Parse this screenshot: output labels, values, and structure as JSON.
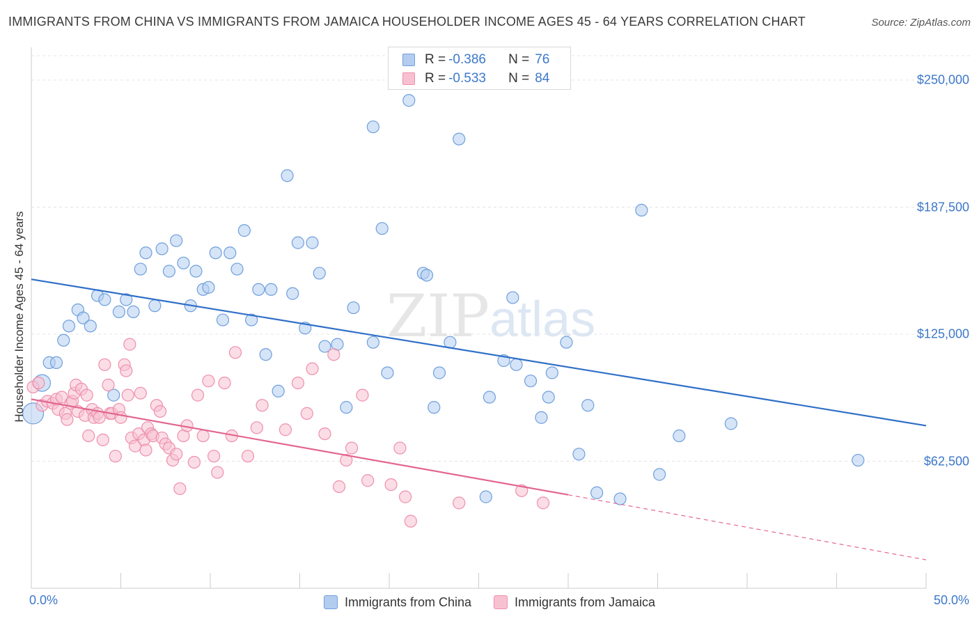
{
  "header": {
    "title": "IMMIGRANTS FROM CHINA VS IMMIGRANTS FROM JAMAICA HOUSEHOLDER INCOME AGES 45 - 64 YEARS CORRELATION CHART",
    "source": "Source: ZipAtlas.com"
  },
  "watermark": {
    "zip": "ZIP",
    "atlas": "atlas"
  },
  "legend_top": {
    "rows": [
      {
        "r_label": "R =",
        "r_value": "-0.386",
        "n_label": "N =",
        "n_value": "76"
      },
      {
        "r_label": "R =",
        "r_value": "-0.533",
        "n_label": "N =",
        "n_value": "84"
      }
    ]
  },
  "colors": {
    "china_fill": "#b3cdf0",
    "china_stroke": "#6f9fdc",
    "china_line": "#2f6fc7",
    "jamaica_fill": "#f8c1d2",
    "jamaica_stroke": "#ee8fae",
    "jamaica_line": "#e2668f",
    "axis_label": "#3d78c9",
    "grid": "#e4e4e4"
  },
  "chart_data": {
    "type": "scatter",
    "title": "IMMIGRANTS FROM CHINA VS IMMIGRANTS FROM JAMAICA HOUSEHOLDER INCOME AGES 45 - 64 YEARS CORRELATION CHART",
    "xlabel": "",
    "ylabel": "Householder Income Ages 45 - 64 years",
    "xlim": [
      0,
      50
    ],
    "ylim": [
      0,
      262000
    ],
    "x_tick_labels": [
      {
        "value": 0,
        "label": "0.0%"
      },
      {
        "value": 50,
        "label": "50.0%"
      }
    ],
    "y_ticks": [
      {
        "value": 62500,
        "label": "$62,500"
      },
      {
        "value": 125000,
        "label": "$125,000"
      },
      {
        "value": 187500,
        "label": "$187,500"
      },
      {
        "value": 250000,
        "label": "$250,000"
      }
    ],
    "grid": true,
    "series": [
      {
        "name": "Immigrants from China",
        "r": -0.386,
        "n": 76,
        "trend": {
          "x": [
            0,
            50
          ],
          "y": [
            152000,
            80000
          ],
          "dashed_to": null
        },
        "points": [
          [
            0.1,
            86000
          ],
          [
            0.6,
            101000
          ],
          [
            1.0,
            111000
          ],
          [
            1.4,
            111000
          ],
          [
            1.8,
            122000
          ],
          [
            2.1,
            129000
          ],
          [
            2.6,
            137000
          ],
          [
            2.9,
            133000
          ],
          [
            3.3,
            129000
          ],
          [
            3.7,
            144000
          ],
          [
            4.1,
            142000
          ],
          [
            4.6,
            95000
          ],
          [
            4.9,
            136000
          ],
          [
            5.3,
            142000
          ],
          [
            5.7,
            136000
          ],
          [
            6.1,
            157000
          ],
          [
            6.4,
            165000
          ],
          [
            6.9,
            139000
          ],
          [
            7.3,
            167000
          ],
          [
            7.7,
            156000
          ],
          [
            8.1,
            171000
          ],
          [
            8.5,
            160000
          ],
          [
            8.9,
            139000
          ],
          [
            9.2,
            156000
          ],
          [
            9.6,
            147000
          ],
          [
            9.9,
            148000
          ],
          [
            10.3,
            165000
          ],
          [
            10.7,
            132000
          ],
          [
            11.1,
            165000
          ],
          [
            11.5,
            157000
          ],
          [
            11.9,
            176000
          ],
          [
            12.3,
            132000
          ],
          [
            12.7,
            147000
          ],
          [
            13.1,
            115000
          ],
          [
            13.4,
            147000
          ],
          [
            13.8,
            97000
          ],
          [
            14.3,
            203000
          ],
          [
            14.6,
            145000
          ],
          [
            14.9,
            170000
          ],
          [
            15.3,
            128000
          ],
          [
            15.7,
            170000
          ],
          [
            16.1,
            155000
          ],
          [
            16.4,
            119000
          ],
          [
            17.1,
            120000
          ],
          [
            17.6,
            89000
          ],
          [
            18.0,
            138000
          ],
          [
            19.1,
            227000
          ],
          [
            19.1,
            121000
          ],
          [
            19.6,
            177000
          ],
          [
            19.9,
            106000
          ],
          [
            21.9,
            155000
          ],
          [
            22.1,
            154000
          ],
          [
            22.5,
            89000
          ],
          [
            22.8,
            106000
          ],
          [
            23.4,
            121000
          ],
          [
            23.9,
            221000
          ],
          [
            25.4,
            45000
          ],
          [
            25.6,
            94000
          ],
          [
            26.4,
            112000
          ],
          [
            26.9,
            143000
          ],
          [
            27.1,
            110000
          ],
          [
            27.9,
            102000
          ],
          [
            28.5,
            84000
          ],
          [
            28.9,
            94000
          ],
          [
            29.1,
            106000
          ],
          [
            29.9,
            121000
          ],
          [
            30.6,
            66000
          ],
          [
            31.1,
            90000
          ],
          [
            31.6,
            47000
          ],
          [
            32.9,
            44000
          ],
          [
            34.1,
            186000
          ],
          [
            35.1,
            56000
          ],
          [
            36.2,
            75000
          ],
          [
            39.1,
            81000
          ],
          [
            46.2,
            63000
          ],
          [
            21.1,
            240000
          ]
        ]
      },
      {
        "name": "Immigrants from Jamaica",
        "r": -0.533,
        "n": 84,
        "trend": {
          "x": [
            0,
            30
          ],
          "y": [
            93000,
            46000
          ],
          "dashed_to": {
            "x": 50,
            "y": 14000
          }
        },
        "points": [
          [
            0.1,
            99000
          ],
          [
            0.4,
            101000
          ],
          [
            0.6,
            90000
          ],
          [
            0.9,
            92000
          ],
          [
            1.2,
            91000
          ],
          [
            1.4,
            93000
          ],
          [
            1.5,
            88000
          ],
          [
            1.7,
            94000
          ],
          [
            1.9,
            86000
          ],
          [
            2.0,
            83000
          ],
          [
            2.2,
            91000
          ],
          [
            2.3,
            92000
          ],
          [
            2.4,
            96000
          ],
          [
            2.5,
            100000
          ],
          [
            2.6,
            87000
          ],
          [
            2.8,
            98000
          ],
          [
            3.0,
            85000
          ],
          [
            3.1,
            95000
          ],
          [
            3.2,
            75000
          ],
          [
            3.4,
            88000
          ],
          [
            3.5,
            84000
          ],
          [
            3.7,
            86000
          ],
          [
            3.8,
            84000
          ],
          [
            4.0,
            73000
          ],
          [
            4.1,
            110000
          ],
          [
            4.3,
            100000
          ],
          [
            4.4,
            86000
          ],
          [
            4.5,
            86000
          ],
          [
            4.7,
            65000
          ],
          [
            4.9,
            88000
          ],
          [
            5.0,
            84000
          ],
          [
            5.2,
            110000
          ],
          [
            5.3,
            107000
          ],
          [
            5.4,
            95000
          ],
          [
            5.5,
            120000
          ],
          [
            5.6,
            74000
          ],
          [
            5.8,
            70000
          ],
          [
            6.0,
            76000
          ],
          [
            6.1,
            96000
          ],
          [
            6.3,
            73000
          ],
          [
            6.4,
            68000
          ],
          [
            6.5,
            79000
          ],
          [
            6.7,
            76000
          ],
          [
            6.8,
            75000
          ],
          [
            7.0,
            90000
          ],
          [
            7.2,
            87000
          ],
          [
            7.3,
            74000
          ],
          [
            7.5,
            71000
          ],
          [
            7.7,
            69000
          ],
          [
            7.9,
            63000
          ],
          [
            8.1,
            66000
          ],
          [
            8.3,
            49000
          ],
          [
            8.5,
            75000
          ],
          [
            8.7,
            80000
          ],
          [
            9.1,
            62000
          ],
          [
            9.3,
            95000
          ],
          [
            9.6,
            75000
          ],
          [
            9.9,
            102000
          ],
          [
            10.2,
            65000
          ],
          [
            10.4,
            57000
          ],
          [
            10.8,
            101000
          ],
          [
            11.2,
            75000
          ],
          [
            11.4,
            116000
          ],
          [
            12.1,
            65000
          ],
          [
            12.6,
            79000
          ],
          [
            12.9,
            90000
          ],
          [
            14.2,
            78000
          ],
          [
            14.9,
            101000
          ],
          [
            15.4,
            86000
          ],
          [
            15.7,
            108000
          ],
          [
            16.4,
            76000
          ],
          [
            16.9,
            115000
          ],
          [
            17.2,
            50000
          ],
          [
            17.6,
            63000
          ],
          [
            17.9,
            69000
          ],
          [
            18.5,
            95000
          ],
          [
            18.8,
            53000
          ],
          [
            20.1,
            51000
          ],
          [
            20.6,
            69000
          ],
          [
            20.9,
            45000
          ],
          [
            21.2,
            33000
          ],
          [
            23.9,
            42000
          ],
          [
            27.4,
            48000
          ],
          [
            28.6,
            42000
          ]
        ]
      }
    ]
  },
  "legend_bottom": {
    "items": [
      {
        "label": "Immigrants from China"
      },
      {
        "label": "Immigrants from Jamaica"
      }
    ]
  }
}
